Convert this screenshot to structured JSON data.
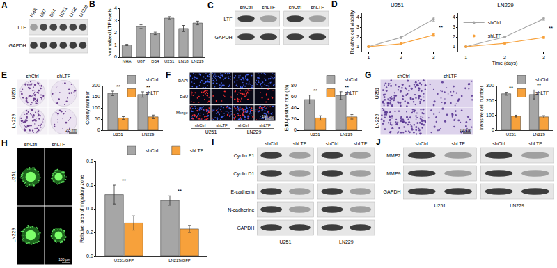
{
  "chart_data": [
    {
      "panel": "B",
      "type": "bar",
      "y_label": "Normalized LTF levels",
      "categories": [
        "NHA",
        "U87",
        "D54",
        "U251",
        "LN18",
        "LN229"
      ],
      "values": [
        1.0,
        2.5,
        1.95,
        3.2,
        2.35,
        2.8
      ],
      "errors": [
        0.05,
        0.15,
        0.1,
        0.12,
        0.25,
        0.15
      ],
      "color": "#a6a6a6",
      "ylim": [
        0,
        4
      ],
      "yticks": [
        0,
        1,
        2,
        3,
        4
      ]
    },
    {
      "panel": "D",
      "type": "line",
      "title": "U251",
      "y_label": "Relative cell viability",
      "x": [
        1,
        2,
        3
      ],
      "series": [
        {
          "name": "shCtrl",
          "color": "#a6a6a6",
          "values": [
            1,
            1.95,
            3.8
          ],
          "errors": [
            0.03,
            0.1,
            0.2
          ]
        },
        {
          "name": "shLTF",
          "color": "#f7a13b",
          "values": [
            1,
            1.3,
            2.2
          ],
          "errors": [
            0.03,
            0.08,
            0.12
          ]
        }
      ],
      "xlim": [
        0.8,
        3.2
      ],
      "xticks": [
        1,
        2,
        3
      ],
      "ylim": [
        0.5,
        4.5
      ],
      "yticks": [
        1,
        2,
        3,
        4
      ],
      "annotations": [
        "**"
      ]
    },
    {
      "panel": "D",
      "type": "line",
      "title": "LN229",
      "x_label": "Time (days)",
      "x": [
        1,
        2,
        3
      ],
      "series": [
        {
          "name": "shCtrl",
          "color": "#a6a6a6",
          "values": [
            1,
            2.0,
            3.85
          ],
          "errors": [
            0.03,
            0.1,
            0.15
          ]
        },
        {
          "name": "shLTF",
          "color": "#f7a13b",
          "values": [
            1,
            1.35,
            1.95
          ],
          "errors": [
            0.03,
            0.08,
            0.1
          ]
        }
      ],
      "xlim": [
        0.8,
        3.2
      ],
      "xticks": [
        1,
        2,
        3
      ],
      "ylim": [
        0.5,
        4.5
      ],
      "yticks": [
        1,
        2,
        3,
        4
      ],
      "annotations": [
        "**"
      ],
      "legend": "top left"
    },
    {
      "panel": "E",
      "type": "bar",
      "y_label": "Colony number",
      "categories": [
        "U251",
        "LN229"
      ],
      "series": [
        {
          "name": "shCtrl",
          "color": "#a6a6a6",
          "values": [
            165,
            160
          ],
          "errors": [
            10,
            12
          ]
        },
        {
          "name": "shLTF",
          "color": "#f7a13b",
          "values": [
            55,
            60
          ],
          "errors": [
            6,
            8
          ]
        }
      ],
      "ylim": [
        0,
        200
      ],
      "yticks": [
        0,
        50,
        100,
        150,
        200
      ],
      "annotations": [
        "**",
        "**"
      ],
      "legend": "top right"
    },
    {
      "panel": "F",
      "type": "bar",
      "y_label": "EdU-positive rate (%)",
      "categories": [
        "U251",
        "LN229"
      ],
      "series": [
        {
          "name": "shCtrl",
          "color": "#a6a6a6",
          "values": [
            55,
            62
          ],
          "errors": [
            8,
            7
          ]
        },
        {
          "name": "shLTF",
          "color": "#f7a13b",
          "values": [
            22,
            24
          ],
          "errors": [
            4,
            4
          ]
        }
      ],
      "ylim": [
        0,
        80
      ],
      "yticks": [
        0,
        20,
        40,
        60,
        80
      ],
      "annotations": [
        "**",
        "**"
      ],
      "legend": "top right"
    },
    {
      "panel": "G",
      "type": "bar",
      "y_label": "Invasive cell number",
      "categories": [
        "U251",
        "LN229"
      ],
      "series": [
        {
          "name": "shCtrl",
          "color": "#a6a6a6",
          "values": [
            245,
            240
          ],
          "errors": [
            10,
            30
          ]
        },
        {
          "name": "shLTF",
          "color": "#f7a13b",
          "values": [
            95,
            90
          ],
          "errors": [
            6,
            8
          ]
        }
      ],
      "ylim": [
        0,
        300
      ],
      "yticks": [
        0,
        100,
        200,
        300
      ],
      "annotations": [
        "**",
        "**"
      ],
      "legend": "top right"
    },
    {
      "panel": "H",
      "type": "bar",
      "y_label": "Relative area of migratory zone",
      "categories": [
        "U251/GFP",
        "LN229/GFP"
      ],
      "series": [
        {
          "name": "shCtrl",
          "color": "#a6a6a6",
          "values": [
            0.52,
            0.47
          ],
          "errors": [
            0.08,
            0.04
          ]
        },
        {
          "name": "shLTF",
          "color": "#f7a13b",
          "values": [
            0.28,
            0.23
          ],
          "errors": [
            0.06,
            0.03
          ]
        }
      ],
      "ylim": [
        0,
        0.8
      ],
      "yticks": [
        {
          "value": 0,
          "label": "0.0"
        },
        {
          "value": 0.2,
          "label": "0.2"
        },
        {
          "value": 0.4,
          "label": "0.4"
        },
        {
          "value": 0.6,
          "label": "0.6"
        },
        {
          "value": 0.8,
          "label": "0.8"
        }
      ],
      "annotations": [
        "**",
        "**"
      ],
      "legend": "top right"
    }
  ],
  "blots": [
    {
      "panel": "A",
      "lanes": [
        "NHA",
        "U87",
        "D54",
        "U251",
        "LN18",
        "LN229"
      ],
      "rows": [
        "LTF",
        "GAPDH"
      ]
    },
    {
      "panel": "C",
      "lanes": [
        [
          "shCtrl",
          "shLTF"
        ],
        [
          "shCtrl",
          "shLTF"
        ]
      ],
      "rows": [
        "LTF",
        "GAPDH"
      ]
    },
    {
      "panel": "I",
      "lanes": [
        [
          "shCtrl",
          "shLTF"
        ],
        [
          "shCtrl",
          "shLTF"
        ]
      ],
      "groups": [
        "U251",
        "LN229"
      ],
      "rows": [
        "Cyclin E1",
        "Cyclin D1",
        "E-cadherin",
        "N-cadherine",
        "GAPDH"
      ]
    },
    {
      "panel": "J",
      "lanes": [
        [
          "shCtrl",
          "shLTF"
        ],
        [
          "shCtrl",
          "shLTF"
        ]
      ],
      "groups": [
        "U251",
        "LN229"
      ],
      "rows": [
        "MMP2",
        "MMP9",
        "GAPDH"
      ]
    }
  ],
  "images": [
    {
      "panel": "E",
      "columns": [
        "shCtrl",
        "shLTF"
      ],
      "rows": [
        "U251",
        "LN229"
      ],
      "scale_bar": "2.5 mm"
    },
    {
      "panel": "F",
      "rows": [
        "DAPI",
        "EdU",
        "Merge"
      ],
      "columns": [
        "shCtrl",
        "shLTF",
        "shCtrl",
        "shLTF"
      ],
      "groups": [
        "U251",
        "LN229"
      ],
      "scale_bar": "100 μm"
    },
    {
      "panel": "G",
      "columns": [
        "shCtrl",
        "shLTF"
      ],
      "rows": [
        "U251",
        "LN229"
      ],
      "scale_bar": "100 μm"
    },
    {
      "panel": "H",
      "columns": [
        "shCtrl",
        "shLTF"
      ],
      "rows": [
        "U251",
        "LN229"
      ],
      "scale_bar": "100 μm"
    }
  ]
}
